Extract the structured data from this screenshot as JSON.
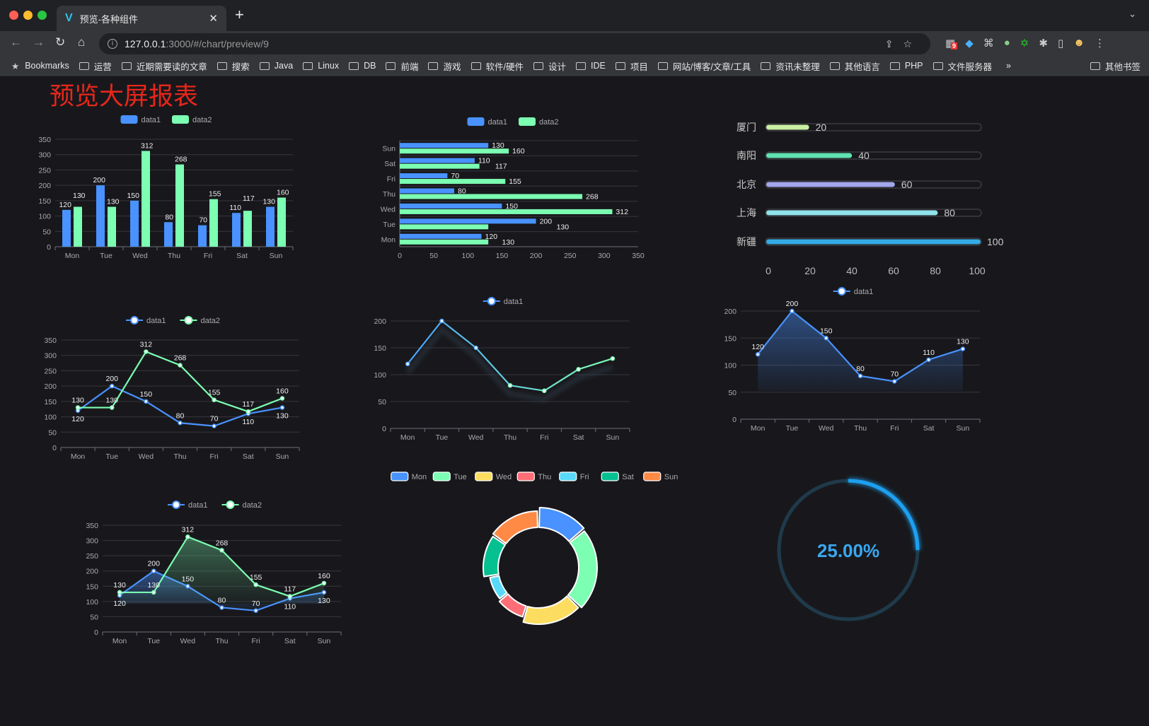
{
  "browser": {
    "tab_title": "预览-各种组件",
    "url_host": "127.0.0.1",
    "url_rest": ":3000/#/chart/preview/9",
    "extension_badge": "9",
    "bookmarks": [
      "Bookmarks",
      "运营",
      "近期需要读的文章",
      "搜索",
      "Java",
      "Linux",
      "DB",
      "前端",
      "游戏",
      "软件/硬件",
      "设计",
      "IDE",
      "项目",
      "网站/博客/文章/工具",
      "资讯未整理",
      "其他语言",
      "PHP",
      "文件服务器"
    ],
    "overflow": "»",
    "other_bookmarks": "其他书签"
  },
  "page": {
    "title": "预览大屏报表"
  },
  "colors": {
    "data1": "#4992ff",
    "data2": "#7cffb2",
    "background": "#18181c",
    "title": "#e8261a",
    "gauge": "#1ea0f0"
  },
  "chart_data": [
    {
      "type": "bar",
      "categories": [
        "Mon",
        "Tue",
        "Wed",
        "Thu",
        "Fri",
        "Sat",
        "Sun"
      ],
      "series": [
        {
          "name": "data1",
          "values": [
            120,
            200,
            150,
            80,
            70,
            110,
            130
          ]
        },
        {
          "name": "data2",
          "values": [
            130,
            130,
            312,
            268,
            155,
            117,
            160
          ]
        }
      ],
      "ylim": [
        0,
        350
      ],
      "yticks": [
        0,
        50,
        100,
        150,
        200,
        250,
        300,
        350
      ],
      "legend": "top",
      "grid": true
    },
    {
      "type": "bar",
      "orientation": "horizontal",
      "categories": [
        "Mon",
        "Tue",
        "Wed",
        "Thu",
        "Fri",
        "Sat",
        "Sun"
      ],
      "series": [
        {
          "name": "data1",
          "values": [
            120,
            200,
            150,
            80,
            70,
            110,
            130
          ]
        },
        {
          "name": "data2",
          "values": [
            130,
            130,
            312,
            268,
            155,
            117,
            160
          ]
        }
      ],
      "xlim": [
        0,
        350
      ],
      "xticks": [
        0,
        50,
        100,
        150,
        200,
        250,
        300,
        350
      ],
      "legend": "top",
      "grid": true
    },
    {
      "type": "bar",
      "orientation": "horizontal",
      "style": "progress",
      "categories": [
        "厦门",
        "南阳",
        "北京",
        "上海",
        "新疆"
      ],
      "values": [
        20,
        40,
        60,
        80,
        100
      ],
      "colors": [
        "#c9f0a4",
        "#5ee3b0",
        "#a3a8ec",
        "#90e3ea",
        "#35ace6"
      ],
      "xlim": [
        0,
        100
      ],
      "xticks": [
        0,
        20,
        40,
        60,
        80,
        100
      ]
    },
    {
      "type": "line",
      "categories": [
        "Mon",
        "Tue",
        "Wed",
        "Thu",
        "Fri",
        "Sat",
        "Sun"
      ],
      "series": [
        {
          "name": "data1",
          "values": [
            120,
            200,
            150,
            80,
            70,
            110,
            130
          ]
        },
        {
          "name": "data2",
          "values": [
            130,
            130,
            312,
            268,
            155,
            117,
            160
          ]
        }
      ],
      "ylim": [
        0,
        350
      ],
      "yticks": [
        0,
        50,
        100,
        150,
        200,
        250,
        300,
        350
      ],
      "legend": "top",
      "grid": true
    },
    {
      "type": "line",
      "categories": [
        "Mon",
        "Tue",
        "Wed",
        "Thu",
        "Fri",
        "Sat",
        "Sun"
      ],
      "series": [
        {
          "name": "data1",
          "values": [
            120,
            200,
            150,
            80,
            70,
            110,
            130
          ]
        }
      ],
      "ylim": [
        0,
        200
      ],
      "yticks": [
        0,
        50,
        100,
        150,
        200
      ],
      "legend": "top",
      "grid": true,
      "gradient_line": true
    },
    {
      "type": "area",
      "categories": [
        "Mon",
        "Tue",
        "Wed",
        "Thu",
        "Fri",
        "Sat",
        "Sun"
      ],
      "series": [
        {
          "name": "data1",
          "values": [
            120,
            200,
            150,
            80,
            70,
            110,
            130
          ]
        }
      ],
      "ylim": [
        0,
        200
      ],
      "yticks": [
        0,
        50,
        100,
        150,
        200
      ],
      "legend": "top",
      "grid": true
    },
    {
      "type": "area",
      "categories": [
        "Mon",
        "Tue",
        "Wed",
        "Thu",
        "Fri",
        "Sat",
        "Sun"
      ],
      "series": [
        {
          "name": "data1",
          "values": [
            120,
            200,
            150,
            80,
            70,
            110,
            130
          ]
        },
        {
          "name": "data2",
          "values": [
            130,
            130,
            312,
            268,
            155,
            117,
            160
          ]
        }
      ],
      "ylim": [
        0,
        350
      ],
      "yticks": [
        0,
        50,
        100,
        150,
        200,
        250,
        300,
        350
      ],
      "legend": "top",
      "grid": true
    },
    {
      "type": "pie",
      "style": "donut",
      "categories": [
        "Mon",
        "Tue",
        "Wed",
        "Thu",
        "Fri",
        "Sat",
        "Sun"
      ],
      "values": [
        120,
        200,
        150,
        80,
        70,
        110,
        130
      ],
      "colors": [
        "#4992ff",
        "#7cffb2",
        "#fddd60",
        "#ff6e76",
        "#58d9f9",
        "#05c091",
        "#ff8a45"
      ],
      "legend": "top"
    },
    {
      "type": "gauge",
      "value": 25,
      "label": "25.00%"
    }
  ]
}
